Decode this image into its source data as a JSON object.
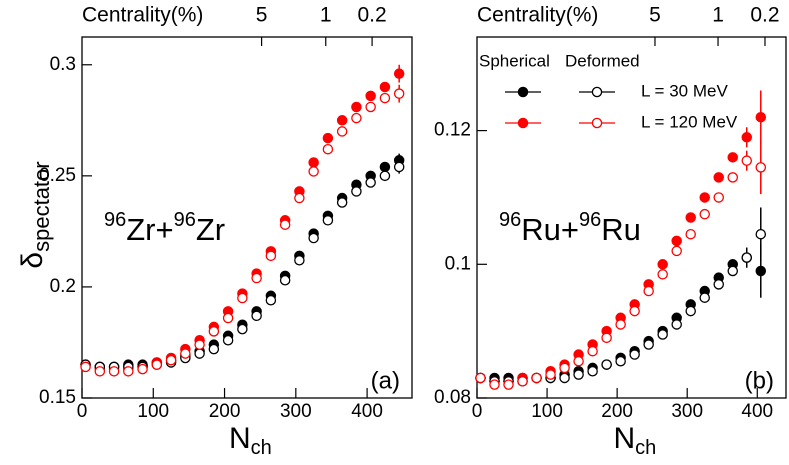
{
  "chart_data": [
    {
      "type": "scatter",
      "top_axis": {
        "label": "Centrality(%)",
        "ticks": [
          {
            "value": 252,
            "label": "5"
          },
          {
            "value": 342,
            "label": "1"
          },
          {
            "value": 407,
            "label": "0.2"
          }
        ]
      },
      "ylabel": {
        "main": "δ",
        "sub": "spectator"
      },
      "xlabel": {
        "main": "N",
        "sub": "ch"
      },
      "system": [
        "96",
        "Zr+",
        "96",
        "Zr"
      ],
      "panel": "(a)",
      "xlim": [
        0,
        463
      ],
      "xticks": [
        0,
        100,
        200,
        300,
        400
      ],
      "ylim": [
        0.15,
        0.3125
      ],
      "yticks": [
        0.15,
        0.2,
        0.25,
        0.3
      ],
      "x": [
        5,
        25,
        45,
        65,
        85,
        105,
        125,
        145,
        165,
        185,
        205,
        225,
        245,
        265,
        285,
        305,
        325,
        345,
        365,
        385,
        405,
        425,
        445
      ],
      "series": [
        {
          "color": "#000000",
          "marker": "filled",
          "values": [
            0.165,
            0.164,
            0.164,
            0.165,
            0.165,
            0.166,
            0.167,
            0.169,
            0.171,
            0.174,
            0.178,
            0.183,
            0.189,
            0.196,
            0.205,
            0.214,
            0.224,
            0.232,
            0.24,
            0.246,
            0.25,
            0.254,
            0.257
          ],
          "errors": [
            0,
            0,
            0,
            0,
            0,
            0,
            0,
            0,
            0,
            0,
            0,
            0,
            0,
            0,
            0,
            0,
            0,
            0,
            0,
            0,
            0,
            0,
            0.003
          ]
        },
        {
          "color": "#ff0000",
          "marker": "filled",
          "values": [
            0.165,
            0.163,
            0.163,
            0.163,
            0.164,
            0.166,
            0.168,
            0.172,
            0.176,
            0.182,
            0.189,
            0.197,
            0.206,
            0.216,
            0.23,
            0.243,
            0.256,
            0.267,
            0.275,
            0.281,
            0.286,
            0.29,
            0.296
          ],
          "errors": [
            0,
            0,
            0,
            0,
            0,
            0,
            0,
            0,
            0,
            0,
            0,
            0,
            0,
            0,
            0,
            0,
            0,
            0,
            0,
            0,
            0,
            0,
            0.004
          ]
        },
        {
          "color": "#000000",
          "marker": "open",
          "values": [
            0.165,
            0.164,
            0.164,
            0.164,
            0.164,
            0.165,
            0.166,
            0.168,
            0.17,
            0.172,
            0.176,
            0.181,
            0.187,
            0.194,
            0.203,
            0.212,
            0.222,
            0.23,
            0.238,
            0.243,
            0.247,
            0.25,
            0.254
          ],
          "errors": [
            0,
            0,
            0,
            0,
            0,
            0,
            0,
            0,
            0,
            0,
            0,
            0,
            0,
            0,
            0,
            0,
            0,
            0,
            0,
            0,
            0,
            0,
            0.003
          ]
        },
        {
          "color": "#ff0000",
          "marker": "open",
          "values": [
            0.164,
            0.162,
            0.162,
            0.162,
            0.163,
            0.165,
            0.167,
            0.17,
            0.174,
            0.18,
            0.186,
            0.195,
            0.204,
            0.214,
            0.228,
            0.24,
            0.252,
            0.262,
            0.27,
            0.276,
            0.281,
            0.285,
            0.287
          ],
          "errors": [
            0,
            0,
            0,
            0,
            0,
            0,
            0,
            0,
            0,
            0,
            0,
            0,
            0,
            0,
            0,
            0,
            0,
            0,
            0,
            0,
            0,
            0,
            0.004
          ]
        }
      ]
    },
    {
      "type": "scatter",
      "top_axis": {
        "label": "Centrality(%)",
        "ticks": [
          {
            "value": 254,
            "label": "5"
          },
          {
            "value": 344,
            "label": "1"
          },
          {
            "value": 411,
            "label": "0.2"
          }
        ]
      },
      "xlabel": {
        "main": "N",
        "sub": "ch"
      },
      "system": [
        "96",
        "Ru+",
        "96",
        "Ru"
      ],
      "panel": "(b)",
      "legend": {
        "columns": [
          "Spherical",
          "Deformed"
        ],
        "rows": [
          "L = 30 MeV",
          "L = 120 MeV"
        ]
      },
      "xlim": [
        0,
        441
      ],
      "xticks": [
        0,
        100,
        200,
        300,
        400
      ],
      "ylim": [
        0.08,
        0.134
      ],
      "yticks": [
        0.08,
        0.1,
        0.12
      ],
      "x": [
        5,
        25,
        45,
        65,
        85,
        105,
        125,
        145,
        165,
        185,
        205,
        225,
        245,
        265,
        285,
        305,
        325,
        345,
        365,
        385,
        405
      ],
      "series": [
        {
          "color": "#000000",
          "marker": "filled",
          "column": 0,
          "row": 0,
          "values": [
            0.083,
            0.083,
            0.083,
            0.083,
            0.083,
            0.083,
            0.0835,
            0.084,
            0.0845,
            0.085,
            0.086,
            0.087,
            0.0885,
            0.09,
            0.092,
            0.094,
            0.096,
            0.098,
            0.1,
            0.101,
            0.099
          ],
          "errors": [
            0,
            0,
            0,
            0,
            0,
            0,
            0,
            0,
            0,
            0,
            0,
            0,
            0,
            0,
            0,
            0,
            0,
            0,
            0,
            0.0015,
            0.004
          ]
        },
        {
          "color": "#ff0000",
          "marker": "filled",
          "column": 0,
          "row": 1,
          "values": [
            0.083,
            0.0825,
            0.0825,
            0.083,
            0.083,
            0.084,
            0.085,
            0.0865,
            0.088,
            0.09,
            0.092,
            0.094,
            0.097,
            0.1,
            0.1035,
            0.107,
            0.11,
            0.113,
            0.116,
            0.119,
            0.122
          ],
          "errors": [
            0,
            0,
            0,
            0,
            0,
            0,
            0,
            0,
            0,
            0,
            0,
            0,
            0,
            0,
            0,
            0,
            0,
            0,
            0,
            0.0015,
            0.004
          ]
        },
        {
          "color": "#000000",
          "marker": "open",
          "column": 1,
          "row": 0,
          "values": [
            0.083,
            0.0825,
            0.0825,
            0.0825,
            0.083,
            0.083,
            0.083,
            0.0835,
            0.084,
            0.085,
            0.0855,
            0.0865,
            0.088,
            0.0895,
            0.091,
            0.093,
            0.095,
            0.097,
            0.099,
            0.101,
            0.1045
          ],
          "errors": [
            0,
            0,
            0,
            0,
            0,
            0,
            0,
            0,
            0,
            0,
            0,
            0,
            0,
            0,
            0,
            0,
            0,
            0,
            0,
            0.0015,
            0.004
          ]
        },
        {
          "color": "#ff0000",
          "marker": "open",
          "column": 1,
          "row": 1,
          "values": [
            0.083,
            0.082,
            0.082,
            0.0825,
            0.083,
            0.0835,
            0.0845,
            0.0855,
            0.087,
            0.089,
            0.091,
            0.093,
            0.096,
            0.0985,
            0.102,
            0.1045,
            0.1075,
            0.11,
            0.113,
            0.1155,
            0.1145
          ],
          "errors": [
            0,
            0,
            0,
            0,
            0,
            0,
            0,
            0,
            0,
            0,
            0,
            0,
            0,
            0,
            0,
            0,
            0,
            0,
            0,
            0.0015,
            0.004
          ]
        }
      ]
    }
  ]
}
